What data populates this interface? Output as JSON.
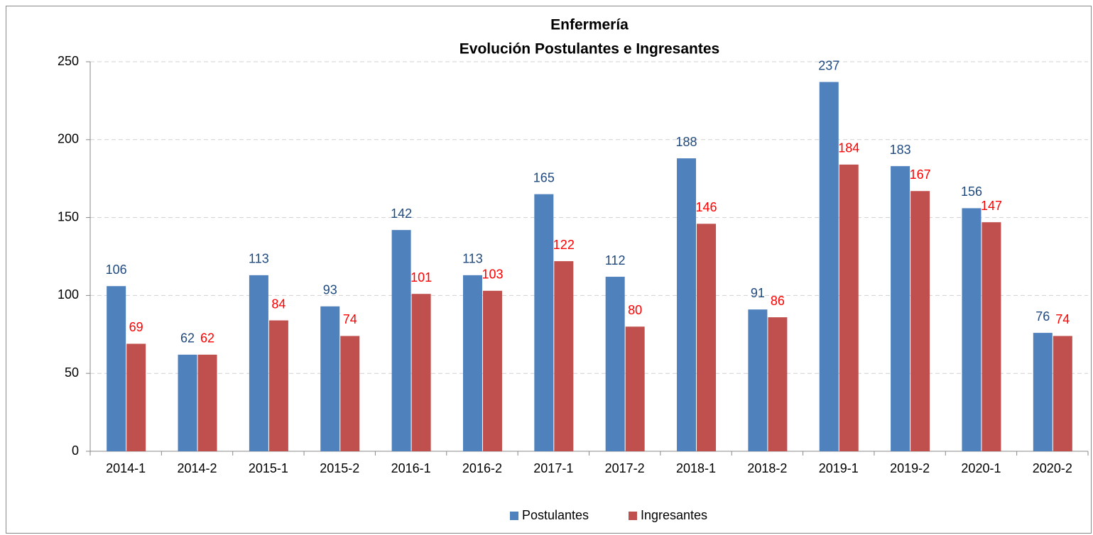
{
  "chart_data": {
    "type": "bar",
    "title": "Enfermería",
    "subtitle": "Evolución Postulantes e Ingresantes",
    "categories": [
      "2014-1",
      "2014-2",
      "2015-1",
      "2015-2",
      "2016-1",
      "2016-2",
      "2017-1",
      "2017-2",
      "2018-1",
      "2018-2",
      "2019-1",
      "2019-2",
      "2020-1",
      "2020-2"
    ],
    "series": [
      {
        "name": "Postulantes",
        "color": "#4f81bd",
        "label_color": "#1f497d",
        "values": [
          106,
          62,
          113,
          93,
          142,
          113,
          165,
          112,
          188,
          91,
          237,
          183,
          156,
          76
        ]
      },
      {
        "name": "Ingresantes",
        "color": "#c0504d",
        "label_color": "#ff0000",
        "values": [
          69,
          62,
          84,
          74,
          101,
          103,
          122,
          80,
          146,
          86,
          184,
          167,
          147,
          74
        ]
      }
    ],
    "ylim": [
      0,
      250
    ],
    "yticks": [
      0,
      50,
      100,
      150,
      200,
      250
    ],
    "grid": true,
    "legend": "bottom"
  }
}
